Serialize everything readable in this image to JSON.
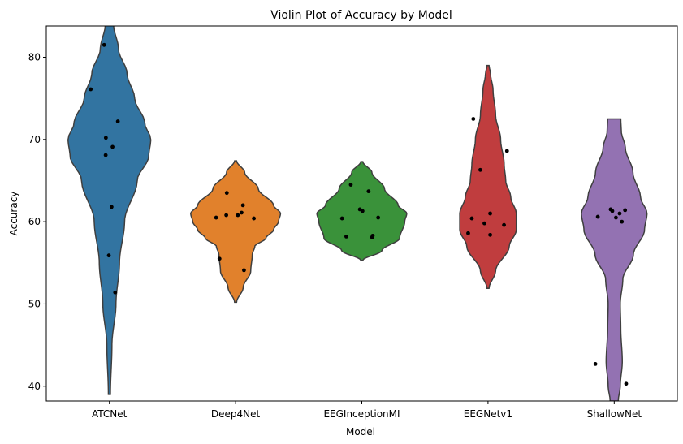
{
  "chart_data": {
    "type": "violin",
    "title": "Violin Plot of Accuracy by Model",
    "xlabel": "Model",
    "ylabel": "Accuracy",
    "ylim": [
      38.2,
      83.8
    ],
    "yticks": [
      40,
      50,
      60,
      70,
      80
    ],
    "grid": false,
    "categories": [
      "ATCNet",
      "Deep4Net",
      "EEGInceptionMI",
      "EEGNetv1",
      "ShallowNet"
    ],
    "colors": [
      "#3274a1",
      "#e1812c",
      "#3a923a",
      "#c03d3e",
      "#9372b2"
    ],
    "series": [
      {
        "name": "ATCNet",
        "range": [
          39,
          84
        ],
        "density": [
          [
            39,
            0.02
          ],
          [
            45,
            0.05
          ],
          [
            50,
            0.13
          ],
          [
            55,
            0.2
          ],
          [
            60,
            0.3
          ],
          [
            65,
            0.55
          ],
          [
            68,
            0.78
          ],
          [
            70,
            0.82
          ],
          [
            72,
            0.7
          ],
          [
            75,
            0.5
          ],
          [
            78,
            0.35
          ],
          [
            81,
            0.18
          ],
          [
            84,
            0.08
          ]
        ],
        "points": [
          81.5,
          76.1,
          72.2,
          70.2,
          69.1,
          68.1,
          61.8,
          55.9,
          51.4
        ]
      },
      {
        "name": "Deep4Net",
        "range": [
          50.2,
          67.4
        ],
        "density": [
          [
            50.2,
            0.02
          ],
          [
            52,
            0.15
          ],
          [
            54,
            0.3
          ],
          [
            56,
            0.33
          ],
          [
            57,
            0.38
          ],
          [
            58,
            0.6
          ],
          [
            59,
            0.75
          ],
          [
            60,
            0.85
          ],
          [
            61,
            0.89
          ],
          [
            62,
            0.75
          ],
          [
            64,
            0.45
          ],
          [
            66,
            0.18
          ],
          [
            67.4,
            0.02
          ]
        ],
        "points": [
          63.5,
          62.0,
          61.1,
          60.8,
          60.8,
          60.5,
          60.4,
          55.5,
          54.1
        ]
      },
      {
        "name": "EEGInceptionMI",
        "range": [
          55.3,
          67.3
        ],
        "density": [
          [
            55.3,
            0.02
          ],
          [
            56.5,
            0.4
          ],
          [
            58,
            0.75
          ],
          [
            60,
            0.85
          ],
          [
            61,
            0.89
          ],
          [
            62,
            0.72
          ],
          [
            64,
            0.45
          ],
          [
            66,
            0.2
          ],
          [
            67.3,
            0.02
          ]
        ],
        "points": [
          64.5,
          63.7,
          61.5,
          61.3,
          60.5,
          60.4,
          58.3,
          58.2,
          58.1
        ]
      },
      {
        "name": "EEGNetv1",
        "range": [
          51.9,
          79
        ],
        "density": [
          [
            51.9,
            0.02
          ],
          [
            54,
            0.15
          ],
          [
            57,
            0.42
          ],
          [
            59,
            0.56
          ],
          [
            61,
            0.56
          ],
          [
            63,
            0.45
          ],
          [
            65,
            0.35
          ],
          [
            67,
            0.32
          ],
          [
            70,
            0.25
          ],
          [
            73,
            0.15
          ],
          [
            76,
            0.1
          ],
          [
            78,
            0.05
          ],
          [
            79,
            0.02
          ]
        ],
        "points": [
          72.5,
          68.6,
          66.3,
          61.0,
          60.4,
          59.8,
          59.6,
          58.6,
          58.4
        ]
      },
      {
        "name": "ShallowNet",
        "range": [
          38.2,
          72.5
        ],
        "density": [
          [
            38.2,
            0.08
          ],
          [
            40,
            0.12
          ],
          [
            43,
            0.16
          ],
          [
            47,
            0.13
          ],
          [
            50,
            0.12
          ],
          [
            53,
            0.17
          ],
          [
            56,
            0.38
          ],
          [
            59,
            0.6
          ],
          [
            61,
            0.65
          ],
          [
            63,
            0.52
          ],
          [
            66,
            0.37
          ],
          [
            69,
            0.22
          ],
          [
            71,
            0.14
          ],
          [
            72.5,
            0.13
          ]
        ],
        "points": [
          61.5,
          61.4,
          61.3,
          61.0,
          60.6,
          60.5,
          60.0,
          42.7,
          40.3
        ]
      }
    ]
  }
}
